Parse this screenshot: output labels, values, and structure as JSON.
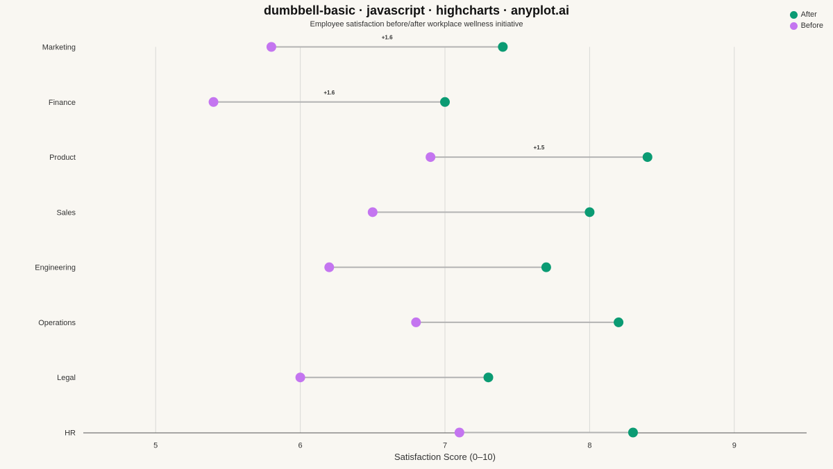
{
  "colors": {
    "after": "#0b9b73",
    "before": "#c475f0",
    "connector": "#b3b3b3",
    "grid": "#d9d9d6",
    "axis": "#555555"
  },
  "chart_data": {
    "type": "dumbbell",
    "title": "dumbbell-basic · javascript · highcharts · anyplot.ai",
    "subtitle": "Employee satisfaction before/after workplace wellness initiative",
    "xlabel": "Satisfaction Score (0–10)",
    "ylabel": "",
    "xlim": [
      4.5,
      9.5
    ],
    "xticks": [
      5,
      6,
      7,
      8,
      9
    ],
    "grid": true,
    "legend_position": "top-right",
    "categories": [
      "Marketing",
      "Finance",
      "Product",
      "Sales",
      "Engineering",
      "Operations",
      "Legal",
      "HR"
    ],
    "series": [
      {
        "name": "After",
        "values": [
          7.4,
          7.0,
          8.4,
          8.0,
          7.7,
          8.2,
          7.3,
          8.3
        ]
      },
      {
        "name": "Before",
        "values": [
          5.8,
          5.4,
          6.9,
          6.5,
          6.2,
          6.8,
          6.0,
          7.1
        ]
      }
    ],
    "annotations": [
      {
        "category": "Marketing",
        "text": "+1.6"
      },
      {
        "category": "Finance",
        "text": "+1.6"
      },
      {
        "category": "Product",
        "text": "+1.5"
      }
    ]
  }
}
